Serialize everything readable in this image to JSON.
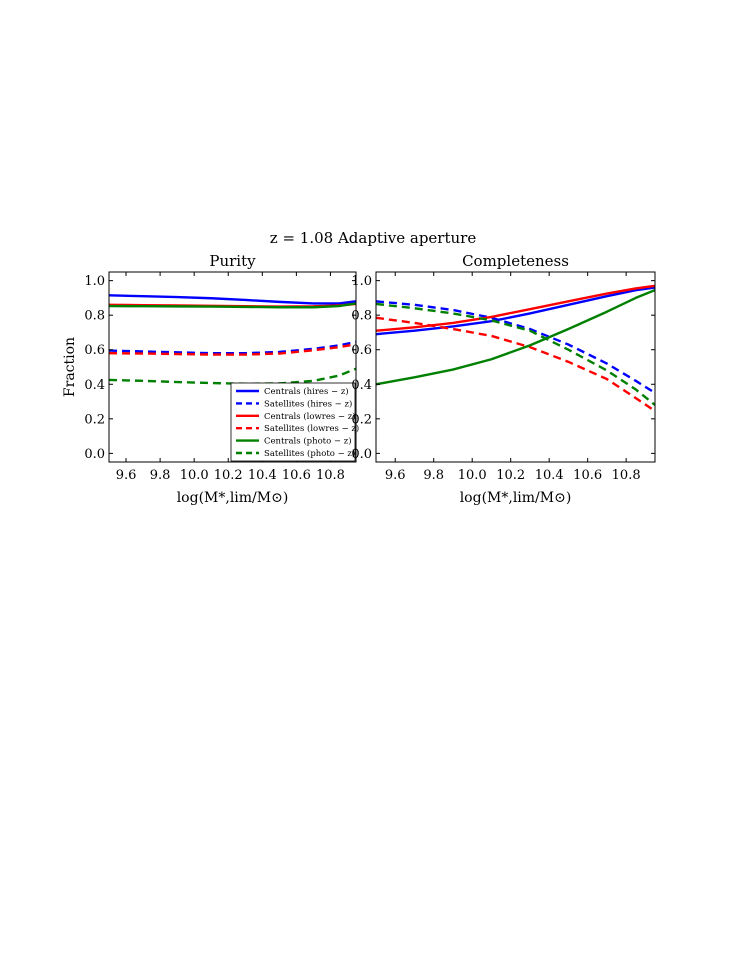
{
  "figure": {
    "suptitle": "z = 1.08 Adaptive aperture"
  },
  "chart_data": [
    {
      "type": "line",
      "title": "Purity",
      "xlabel": "log(M*,lim/M⊙)",
      "ylabel": "Fraction",
      "xlim": [
        9.5,
        10.95
      ],
      "ylim": [
        -0.05,
        1.05
      ],
      "xticks": [
        "9.6",
        "9.8",
        "10.0",
        "10.2",
        "10.4",
        "10.6",
        "10.8"
      ],
      "yticks": [
        "0.0",
        "0.2",
        "0.4",
        "0.6",
        "0.8",
        "1.0"
      ],
      "grid": false,
      "legend": "bottom-right",
      "series": [
        {
          "name": "Centrals (hires − z)",
          "color": "#0000ff",
          "dash": "solid",
          "x": [
            9.5,
            9.7,
            9.9,
            10.1,
            10.3,
            10.5,
            10.7,
            10.85,
            10.95
          ],
          "y": [
            0.915,
            0.91,
            0.905,
            0.898,
            0.888,
            0.877,
            0.868,
            0.868,
            0.88
          ]
        },
        {
          "name": "Satellites (hires − z)",
          "color": "#0000ff",
          "dash": "dashed",
          "x": [
            9.5,
            9.7,
            9.9,
            10.1,
            10.3,
            10.5,
            10.7,
            10.85,
            10.95
          ],
          "y": [
            0.595,
            0.59,
            0.585,
            0.58,
            0.58,
            0.587,
            0.605,
            0.625,
            0.645
          ]
        },
        {
          "name": "Centrals (lowres − z)",
          "color": "#ff0000",
          "dash": "solid",
          "x": [
            9.5,
            9.7,
            9.9,
            10.1,
            10.3,
            10.5,
            10.7,
            10.85,
            10.95
          ],
          "y": [
            0.86,
            0.858,
            0.856,
            0.854,
            0.852,
            0.85,
            0.851,
            0.856,
            0.865
          ]
        },
        {
          "name": "Satellites (lowres − z)",
          "color": "#ff0000",
          "dash": "dashed",
          "x": [
            9.5,
            9.7,
            9.9,
            10.1,
            10.3,
            10.5,
            10.7,
            10.85,
            10.95
          ],
          "y": [
            0.58,
            0.578,
            0.575,
            0.572,
            0.572,
            0.578,
            0.597,
            0.615,
            0.632
          ]
        },
        {
          "name": "Centrals (photo − z)",
          "color": "#008000",
          "dash": "solid",
          "x": [
            9.5,
            9.7,
            9.9,
            10.1,
            10.3,
            10.5,
            10.7,
            10.85,
            10.95
          ],
          "y": [
            0.853,
            0.852,
            0.851,
            0.85,
            0.848,
            0.846,
            0.846,
            0.853,
            0.868
          ]
        },
        {
          "name": "Satellites (photo − z)",
          "color": "#008000",
          "dash": "dashed",
          "x": [
            9.5,
            9.7,
            9.9,
            10.1,
            10.3,
            10.5,
            10.7,
            10.85,
            10.95
          ],
          "y": [
            0.425,
            0.42,
            0.413,
            0.407,
            0.403,
            0.405,
            0.42,
            0.45,
            0.49
          ]
        }
      ]
    },
    {
      "type": "line",
      "title": "Completeness",
      "xlabel": "log(M*,lim/M⊙)",
      "ylabel": "",
      "xlim": [
        9.5,
        10.95
      ],
      "ylim": [
        -0.05,
        1.05
      ],
      "xticks": [
        "9.6",
        "9.8",
        "10.0",
        "10.2",
        "10.4",
        "10.6",
        "10.8"
      ],
      "yticks": [
        "0.0",
        "0.2",
        "0.4",
        "0.6",
        "0.8",
        "1.0"
      ],
      "grid": false,
      "series": [
        {
          "name": "Centrals (hires − z)",
          "color": "#0000ff",
          "dash": "solid",
          "x": [
            9.5,
            9.7,
            9.9,
            10.1,
            10.3,
            10.5,
            10.7,
            10.85,
            10.95
          ],
          "y": [
            0.69,
            0.71,
            0.735,
            0.765,
            0.81,
            0.86,
            0.91,
            0.945,
            0.96
          ]
        },
        {
          "name": "Satellites (hires − z)",
          "color": "#0000ff",
          "dash": "dashed",
          "x": [
            9.5,
            9.7,
            9.9,
            10.1,
            10.3,
            10.5,
            10.7,
            10.85,
            10.95
          ],
          "y": [
            0.88,
            0.86,
            0.83,
            0.785,
            0.72,
            0.63,
            0.52,
            0.42,
            0.35
          ]
        },
        {
          "name": "Centrals (lowres − z)",
          "color": "#ff0000",
          "dash": "solid",
          "x": [
            9.5,
            9.7,
            9.9,
            10.1,
            10.3,
            10.5,
            10.7,
            10.85,
            10.95
          ],
          "y": [
            0.71,
            0.73,
            0.755,
            0.79,
            0.835,
            0.88,
            0.925,
            0.955,
            0.97
          ]
        },
        {
          "name": "Satellites (lowres − z)",
          "color": "#ff0000",
          "dash": "dashed",
          "x": [
            9.5,
            9.7,
            9.9,
            10.1,
            10.3,
            10.5,
            10.7,
            10.85,
            10.95
          ],
          "y": [
            0.785,
            0.755,
            0.72,
            0.68,
            0.615,
            0.53,
            0.43,
            0.32,
            0.245
          ]
        },
        {
          "name": "Centrals (photo − z)",
          "color": "#008000",
          "dash": "solid",
          "x": [
            9.5,
            9.7,
            9.9,
            10.1,
            10.3,
            10.5,
            10.7,
            10.85,
            10.95
          ],
          "y": [
            0.4,
            0.44,
            0.485,
            0.545,
            0.625,
            0.72,
            0.82,
            0.9,
            0.945
          ]
        },
        {
          "name": "Satellites (photo − z)",
          "color": "#008000",
          "dash": "dashed",
          "x": [
            9.5,
            9.7,
            9.9,
            10.1,
            10.3,
            10.5,
            10.7,
            10.85,
            10.95
          ],
          "y": [
            0.865,
            0.84,
            0.81,
            0.77,
            0.71,
            0.6,
            0.48,
            0.37,
            0.28
          ]
        }
      ]
    }
  ]
}
